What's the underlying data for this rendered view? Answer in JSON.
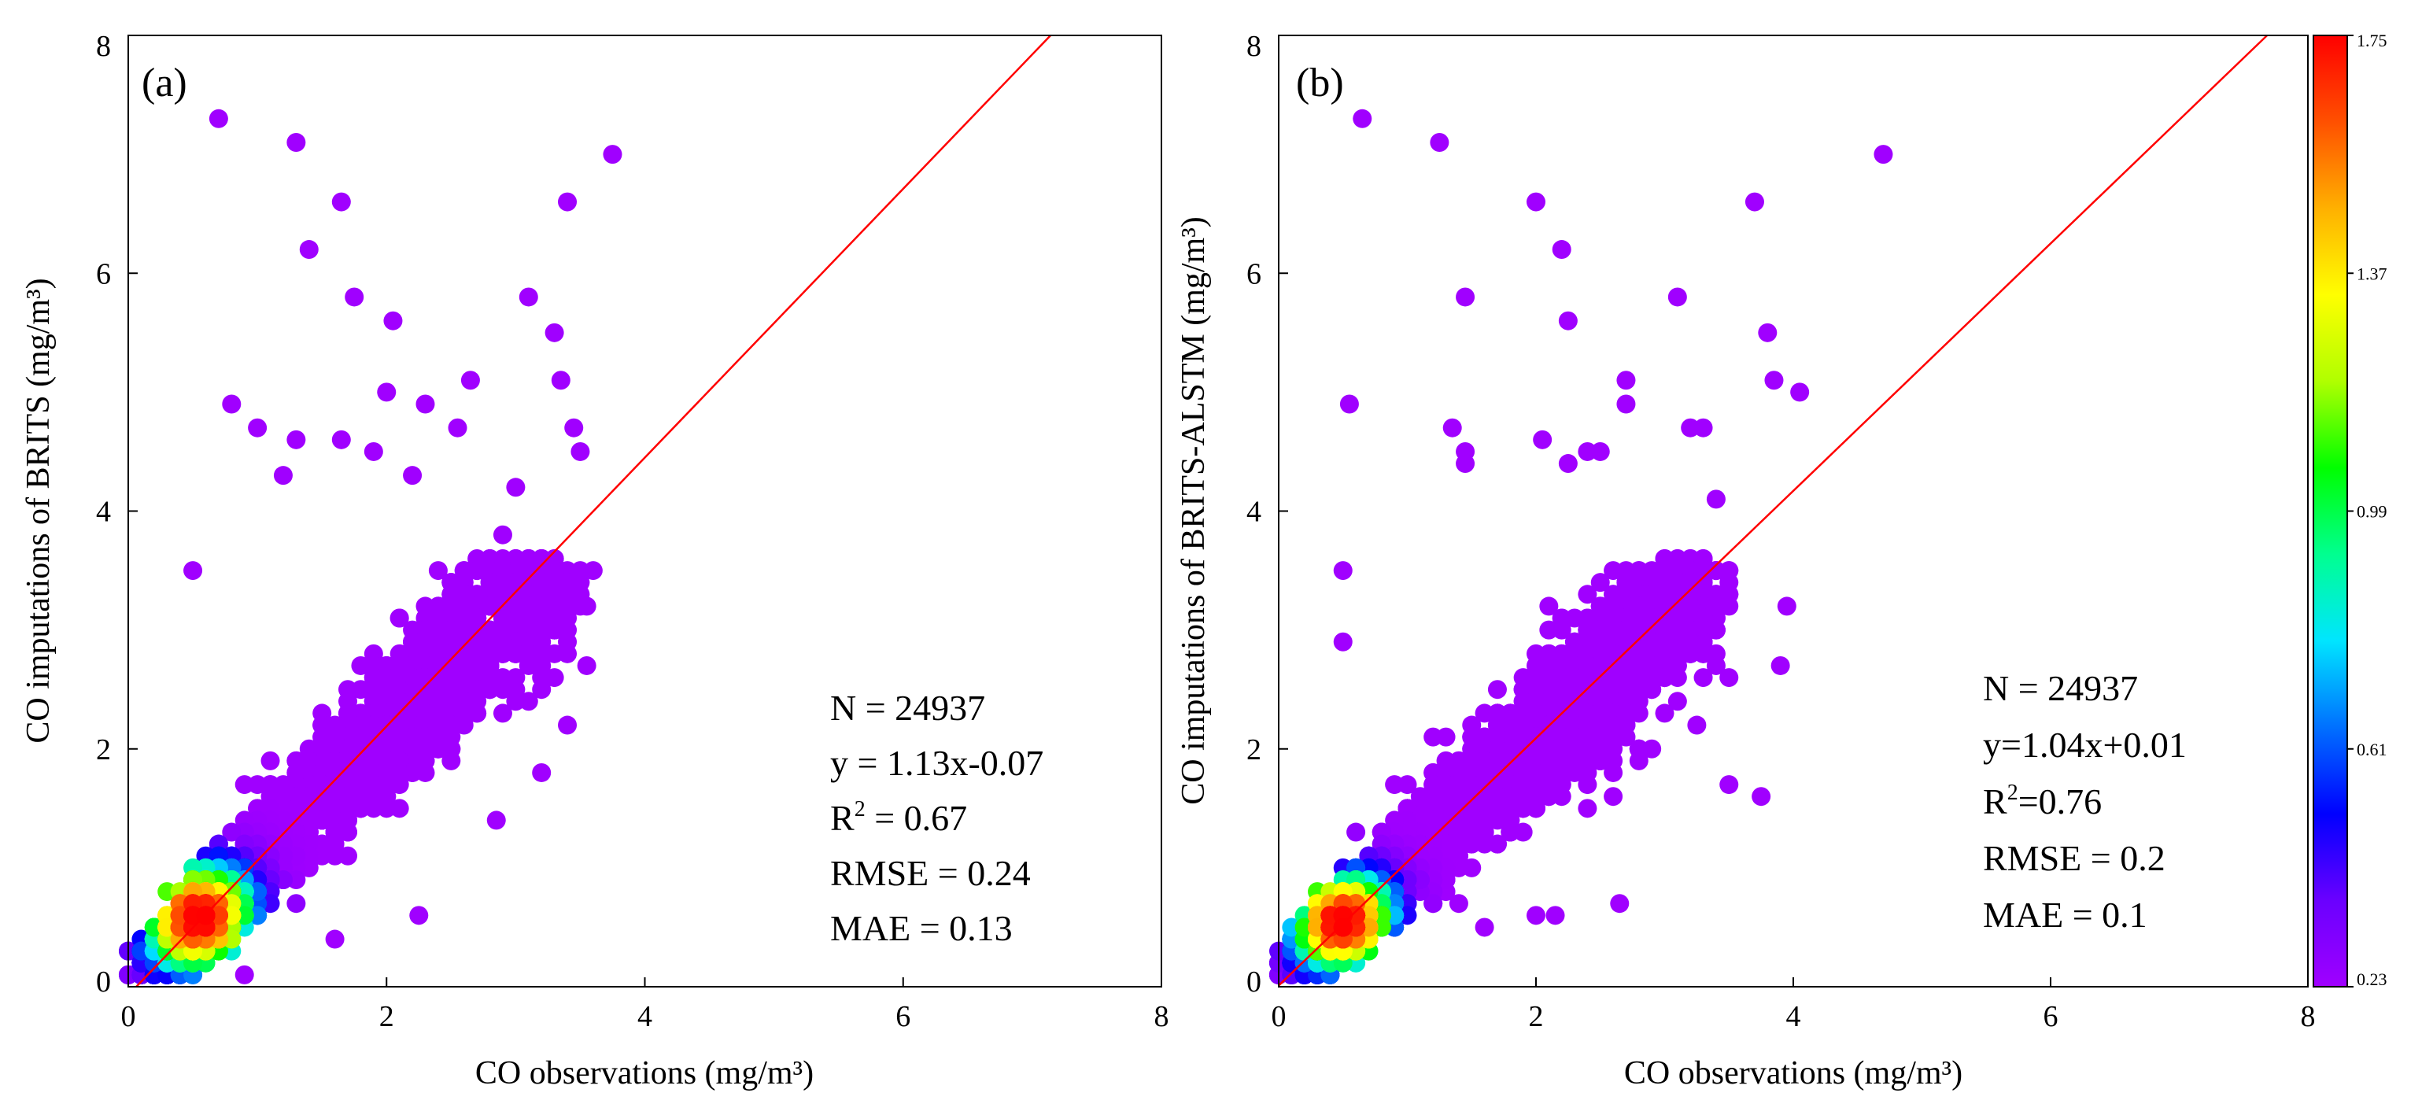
{
  "chart_data": [
    {
      "type": "scatter",
      "panel_label": "(a)",
      "xlabel": "CO observations (mg/m³)",
      "ylabel": "CO imputations of BRITS (mg/m³)",
      "xlim": [
        0,
        8
      ],
      "ylim": [
        0,
        8
      ],
      "xticks": [
        "0",
        "2",
        "4",
        "6",
        "8"
      ],
      "yticks": [
        "0",
        "2",
        "4",
        "6",
        "8"
      ],
      "grid": false,
      "fit_line": {
        "slope": 1.13,
        "intercept": -0.07,
        "color": "#ff0000"
      },
      "stats": {
        "n": "N = 24937",
        "equation": "y = 1.13x-0.07",
        "r2_prefix": "R",
        "r2_exponent": "2",
        "r2_value": " = 0.67",
        "rmse": "RMSE = 0.24",
        "mae": "MAE = 0.13"
      },
      "outliers": [
        [
          0.7,
          7.3
        ],
        [
          1.3,
          7.1
        ],
        [
          3.75,
          7.0
        ],
        [
          1.65,
          6.6
        ],
        [
          3.4,
          6.6
        ],
        [
          1.4,
          6.2
        ],
        [
          1.75,
          5.8
        ],
        [
          3.1,
          5.8
        ],
        [
          2.05,
          5.6
        ],
        [
          3.3,
          5.5
        ],
        [
          0.8,
          4.9
        ],
        [
          1.0,
          4.7
        ],
        [
          2.65,
          5.1
        ],
        [
          3.35,
          5.1
        ],
        [
          2.0,
          5.0
        ],
        [
          2.3,
          4.9
        ],
        [
          2.55,
          4.7
        ],
        [
          3.45,
          4.7
        ],
        [
          3.5,
          4.5
        ],
        [
          1.3,
          4.6
        ],
        [
          1.65,
          4.6
        ],
        [
          1.9,
          4.5
        ],
        [
          1.2,
          4.3
        ],
        [
          3.0,
          4.2
        ],
        [
          2.2,
          4.3
        ],
        [
          0.5,
          3.5
        ],
        [
          2.9,
          3.8
        ],
        [
          3.55,
          2.7
        ],
        [
          3.2,
          1.8
        ],
        [
          2.85,
          1.4
        ],
        [
          2.25,
          0.6
        ],
        [
          1.6,
          0.4
        ],
        [
          0.9,
          0.1
        ],
        [
          3.4,
          2.2
        ],
        [
          3.55,
          3.2
        ],
        [
          3.15,
          3.3
        ]
      ],
      "cluster": {
        "center": [
          0.55,
          0.58
        ],
        "spread_x": 0.28,
        "spread_y": 0.3,
        "slope": 1.13,
        "intercept": -0.07,
        "count": 3200,
        "extent_x": 3.4
      }
    },
    {
      "type": "scatter",
      "panel_label": "(b)",
      "xlabel": "CO observations (mg/m³)",
      "ylabel": "CO imputations of BRITS-ALSTM (mg/m³)",
      "xlim": [
        0,
        8
      ],
      "ylim": [
        0,
        8
      ],
      "xticks": [
        "0",
        "2",
        "4",
        "6",
        "8"
      ],
      "yticks": [
        "0",
        "2",
        "4",
        "6",
        "8"
      ],
      "grid": false,
      "fit_line": {
        "slope": 1.04,
        "intercept": 0.01,
        "color": "#ff0000"
      },
      "stats": {
        "n": "N = 24937",
        "equation": "y=1.04x+0.01",
        "r2_prefix": "R",
        "r2_exponent": "2",
        "r2_value": "=0.76",
        "rmse": "RMSE = 0.2",
        "mae": "MAE = 0.1"
      },
      "outliers": [
        [
          0.65,
          7.3
        ],
        [
          1.25,
          7.1
        ],
        [
          4.7,
          7.0
        ],
        [
          2.0,
          6.6
        ],
        [
          3.7,
          6.6
        ],
        [
          2.2,
          6.2
        ],
        [
          1.45,
          5.8
        ],
        [
          3.1,
          5.8
        ],
        [
          2.25,
          5.6
        ],
        [
          3.8,
          5.5
        ],
        [
          0.55,
          4.9
        ],
        [
          2.7,
          5.1
        ],
        [
          3.85,
          5.1
        ],
        [
          4.05,
          5.0
        ],
        [
          2.7,
          4.9
        ],
        [
          1.35,
          4.7
        ],
        [
          3.2,
          4.7
        ],
        [
          3.3,
          4.7
        ],
        [
          1.45,
          4.5
        ],
        [
          2.4,
          4.5
        ],
        [
          2.5,
          4.5
        ],
        [
          1.45,
          4.4
        ],
        [
          2.05,
          4.6
        ],
        [
          2.25,
          4.4
        ],
        [
          0.5,
          3.5
        ],
        [
          3.4,
          4.1
        ],
        [
          3.95,
          3.2
        ],
        [
          3.9,
          2.7
        ],
        [
          3.75,
          1.6
        ],
        [
          3.5,
          1.7
        ],
        [
          3.25,
          2.2
        ],
        [
          2.65,
          0.7
        ],
        [
          2.15,
          0.6
        ],
        [
          0.5,
          2.9
        ],
        [
          2.0,
          0.6
        ],
        [
          1.6,
          0.5
        ]
      ],
      "cluster": {
        "center": [
          0.5,
          0.55
        ],
        "spread_x": 0.26,
        "spread_y": 0.27,
        "slope": 1.04,
        "intercept": 0.01,
        "count": 3200,
        "extent_x": 3.4
      }
    }
  ],
  "colorbar": {
    "ticks": [
      "1.75",
      "1.37",
      "0.99",
      "0.61",
      "0.23"
    ],
    "min": 0.23,
    "max": 1.75,
    "colors": [
      "#a000ff",
      "#6a00ff",
      "#0000ff",
      "#0070ff",
      "#00e5ff",
      "#00ff90",
      "#00ff00",
      "#b0ff00",
      "#ffff00",
      "#ffb000",
      "#ff5000",
      "#ff0000"
    ]
  }
}
